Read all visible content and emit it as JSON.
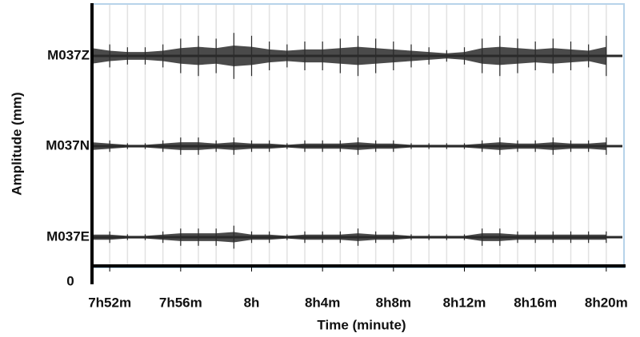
{
  "chart_data": {
    "type": "seismogram",
    "ylabel": "Amplitude (mm)",
    "xlabel": "Time (minute)",
    "yzero": 0,
    "x": [
      471,
      472,
      473,
      474,
      475,
      476,
      477,
      478,
      479,
      480,
      481,
      482,
      483,
      484,
      485,
      486,
      487,
      488,
      489,
      490,
      491,
      492,
      493,
      494,
      495,
      496,
      497,
      498,
      499,
      500
    ],
    "xlim": [
      471,
      501
    ],
    "xticks": [
      {
        "value": 472,
        "label": "7h52m"
      },
      {
        "value": 476,
        "label": "7h56m"
      },
      {
        "value": 480,
        "label": "8h"
      },
      {
        "value": 484,
        "label": "8h4m"
      },
      {
        "value": 488,
        "label": "8h8m"
      },
      {
        "value": 492,
        "label": "8h12m"
      },
      {
        "value": 496,
        "label": "8h16m"
      },
      {
        "value": 500,
        "label": "8h20m"
      }
    ],
    "grid": true,
    "series": [
      {
        "name": "M037Z",
        "color": "#2a2a2a",
        "values": [
          6,
          4,
          3,
          3,
          4,
          6,
          7,
          6,
          8,
          7,
          5,
          4,
          5,
          5,
          6,
          7,
          6,
          5,
          4,
          3,
          2,
          3,
          6,
          7,
          6,
          5,
          6,
          5,
          4,
          7
        ]
      },
      {
        "name": "M037N",
        "color": "#2a2a2a",
        "values": [
          3,
          2,
          1,
          1,
          2,
          3,
          3,
          2,
          3,
          2,
          2,
          1,
          2,
          2,
          2,
          3,
          2,
          2,
          1,
          1,
          1,
          1,
          2,
          3,
          2,
          2,
          3,
          2,
          2,
          3
        ]
      },
      {
        "name": "M037E",
        "color": "#2a2a2a",
        "values": [
          2,
          2,
          1,
          1,
          2,
          3,
          3,
          3,
          4,
          2,
          2,
          1,
          2,
          2,
          2,
          3,
          2,
          2,
          1,
          1,
          1,
          1,
          3,
          3,
          2,
          2,
          2,
          2,
          2,
          2
        ]
      }
    ]
  }
}
